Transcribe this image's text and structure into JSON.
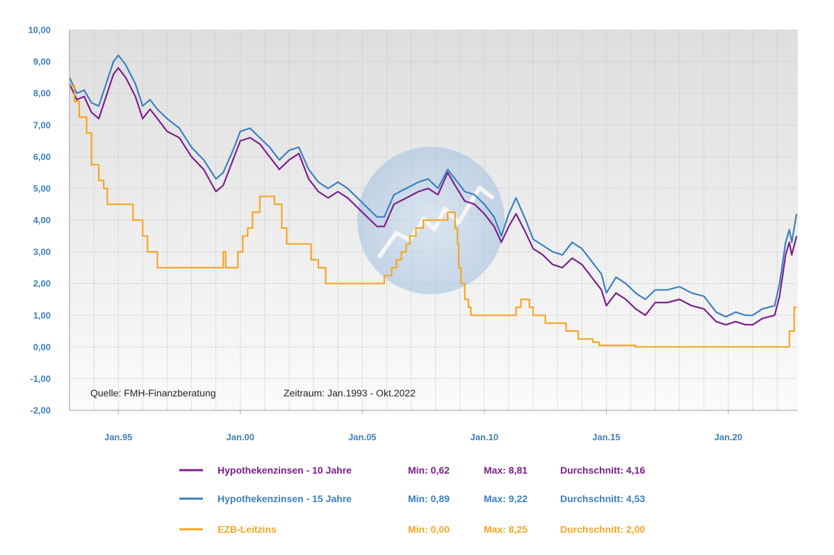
{
  "chart_data": {
    "type": "line",
    "title": "",
    "xlabel": "",
    "ylabel": "",
    "x_range": [
      "Jan.1993",
      "Okt.2022"
    ],
    "ylim": [
      -2,
      10
    ],
    "y_ticks": [
      "10,00",
      "9,00",
      "8,00",
      "7,00",
      "6,00",
      "5,00",
      "4,00",
      "3,00",
      "2,00",
      "1,00",
      "0,00",
      "-1,00",
      "-2,00"
    ],
    "x_ticks": [
      "Jan.95",
      "Jan.00",
      "Jan.05",
      "Jan.10",
      "Jan.15",
      "Jan.20"
    ],
    "grid": true,
    "legend_position": "bottom",
    "source_note": "Quelle: FMH-Finanzberatung",
    "period_note": "Zeitraum: Jan.1993 - Okt.2022",
    "series": [
      {
        "name": "Hypothekenzinsen - 10 Jahre",
        "color": "#7b1e8c",
        "min_label": "Min: 0,62",
        "max_label": "Max: 8,81",
        "avg_label": "Durchschnitt: 4,16",
        "points": [
          [
            1993.0,
            8.3
          ],
          [
            1993.3,
            7.8
          ],
          [
            1993.6,
            7.9
          ],
          [
            1993.9,
            7.4
          ],
          [
            1994.2,
            7.2
          ],
          [
            1994.5,
            7.9
          ],
          [
            1994.8,
            8.6
          ],
          [
            1995.0,
            8.8
          ],
          [
            1995.3,
            8.5
          ],
          [
            1995.7,
            7.9
          ],
          [
            1996.0,
            7.2
          ],
          [
            1996.3,
            7.5
          ],
          [
            1996.6,
            7.2
          ],
          [
            1997.0,
            6.8
          ],
          [
            1997.5,
            6.6
          ],
          [
            1998.0,
            6.0
          ],
          [
            1998.5,
            5.6
          ],
          [
            1999.0,
            4.9
          ],
          [
            1999.3,
            5.1
          ],
          [
            1999.7,
            5.9
          ],
          [
            2000.0,
            6.5
          ],
          [
            2000.4,
            6.6
          ],
          [
            2000.8,
            6.4
          ],
          [
            2001.2,
            6.0
          ],
          [
            2001.6,
            5.6
          ],
          [
            2002.0,
            5.9
          ],
          [
            2002.4,
            6.1
          ],
          [
            2002.8,
            5.3
          ],
          [
            2003.2,
            4.9
          ],
          [
            2003.6,
            4.7
          ],
          [
            2004.0,
            4.9
          ],
          [
            2004.4,
            4.7
          ],
          [
            2004.8,
            4.4
          ],
          [
            2005.2,
            4.1
          ],
          [
            2005.6,
            3.8
          ],
          [
            2005.9,
            3.8
          ],
          [
            2006.3,
            4.5
          ],
          [
            2006.8,
            4.7
          ],
          [
            2007.3,
            4.9
          ],
          [
            2007.7,
            5.0
          ],
          [
            2008.1,
            4.8
          ],
          [
            2008.5,
            5.5
          ],
          [
            2008.8,
            5.1
          ],
          [
            2009.2,
            4.6
          ],
          [
            2009.6,
            4.5
          ],
          [
            2010.0,
            4.2
          ],
          [
            2010.4,
            3.8
          ],
          [
            2010.7,
            3.3
          ],
          [
            2011.0,
            3.8
          ],
          [
            2011.3,
            4.2
          ],
          [
            2011.7,
            3.6
          ],
          [
            2012.0,
            3.1
          ],
          [
            2012.4,
            2.9
          ],
          [
            2012.8,
            2.6
          ],
          [
            2013.2,
            2.5
          ],
          [
            2013.6,
            2.8
          ],
          [
            2014.0,
            2.6
          ],
          [
            2014.4,
            2.2
          ],
          [
            2014.8,
            1.8
          ],
          [
            2015.0,
            1.3
          ],
          [
            2015.4,
            1.7
          ],
          [
            2015.8,
            1.5
          ],
          [
            2016.2,
            1.2
          ],
          [
            2016.6,
            1.0
          ],
          [
            2017.0,
            1.4
          ],
          [
            2017.5,
            1.4
          ],
          [
            2018.0,
            1.5
          ],
          [
            2018.5,
            1.3
          ],
          [
            2019.0,
            1.2
          ],
          [
            2019.5,
            0.8
          ],
          [
            2019.9,
            0.7
          ],
          [
            2020.3,
            0.8
          ],
          [
            2020.7,
            0.7
          ],
          [
            2021.0,
            0.7
          ],
          [
            2021.4,
            0.9
          ],
          [
            2021.9,
            1.0
          ],
          [
            2022.1,
            1.6
          ],
          [
            2022.35,
            2.9
          ],
          [
            2022.5,
            3.3
          ],
          [
            2022.6,
            2.9
          ],
          [
            2022.8,
            3.5
          ]
        ]
      },
      {
        "name": "Hypothekenzinsen - 15 Jahre",
        "color": "#3a7fc0",
        "min_label": "Min: 0,89",
        "max_label": "Max: 9,22",
        "avg_label": "Durchschnitt: 4,53",
        "points": [
          [
            1993.0,
            8.5
          ],
          [
            1993.3,
            8.0
          ],
          [
            1993.6,
            8.1
          ],
          [
            1993.9,
            7.7
          ],
          [
            1994.2,
            7.6
          ],
          [
            1994.5,
            8.3
          ],
          [
            1994.8,
            9.0
          ],
          [
            1995.0,
            9.2
          ],
          [
            1995.3,
            8.9
          ],
          [
            1995.7,
            8.3
          ],
          [
            1996.0,
            7.6
          ],
          [
            1996.3,
            7.8
          ],
          [
            1996.6,
            7.5
          ],
          [
            1997.0,
            7.2
          ],
          [
            1997.5,
            6.9
          ],
          [
            1998.0,
            6.3
          ],
          [
            1998.5,
            5.9
          ],
          [
            1999.0,
            5.3
          ],
          [
            1999.3,
            5.5
          ],
          [
            1999.7,
            6.2
          ],
          [
            2000.0,
            6.8
          ],
          [
            2000.4,
            6.9
          ],
          [
            2000.8,
            6.6
          ],
          [
            2001.2,
            6.3
          ],
          [
            2001.6,
            5.9
          ],
          [
            2002.0,
            6.2
          ],
          [
            2002.4,
            6.3
          ],
          [
            2002.8,
            5.6
          ],
          [
            2003.2,
            5.2
          ],
          [
            2003.6,
            5.0
          ],
          [
            2004.0,
            5.2
          ],
          [
            2004.4,
            5.0
          ],
          [
            2004.8,
            4.7
          ],
          [
            2005.2,
            4.4
          ],
          [
            2005.6,
            4.1
          ],
          [
            2005.9,
            4.1
          ],
          [
            2006.3,
            4.8
          ],
          [
            2006.8,
            5.0
          ],
          [
            2007.3,
            5.2
          ],
          [
            2007.7,
            5.3
          ],
          [
            2008.1,
            5.0
          ],
          [
            2008.5,
            5.6
          ],
          [
            2008.8,
            5.3
          ],
          [
            2009.2,
            4.9
          ],
          [
            2009.6,
            4.8
          ],
          [
            2010.0,
            4.5
          ],
          [
            2010.4,
            4.1
          ],
          [
            2010.7,
            3.5
          ],
          [
            2011.0,
            4.2
          ],
          [
            2011.3,
            4.7
          ],
          [
            2011.7,
            4.0
          ],
          [
            2012.0,
            3.4
          ],
          [
            2012.4,
            3.2
          ],
          [
            2012.8,
            3.0
          ],
          [
            2013.2,
            2.9
          ],
          [
            2013.6,
            3.3
          ],
          [
            2014.0,
            3.1
          ],
          [
            2014.4,
            2.7
          ],
          [
            2014.8,
            2.3
          ],
          [
            2015.0,
            1.7
          ],
          [
            2015.4,
            2.2
          ],
          [
            2015.8,
            2.0
          ],
          [
            2016.2,
            1.7
          ],
          [
            2016.6,
            1.5
          ],
          [
            2017.0,
            1.8
          ],
          [
            2017.5,
            1.8
          ],
          [
            2018.0,
            1.9
          ],
          [
            2018.5,
            1.7
          ],
          [
            2019.0,
            1.6
          ],
          [
            2019.5,
            1.1
          ],
          [
            2019.9,
            0.95
          ],
          [
            2020.3,
            1.1
          ],
          [
            2020.7,
            1.0
          ],
          [
            2021.0,
            1.0
          ],
          [
            2021.4,
            1.2
          ],
          [
            2021.9,
            1.3
          ],
          [
            2022.1,
            2.0
          ],
          [
            2022.35,
            3.3
          ],
          [
            2022.5,
            3.7
          ],
          [
            2022.6,
            3.3
          ],
          [
            2022.8,
            4.2
          ]
        ]
      },
      {
        "name": "EZB-Leitzins",
        "color": "#f5a623",
        "min_label": "Min: 0,00",
        "max_label": "Max: 8,25",
        "avg_label": "Durchschnitt: 2,00",
        "step": true,
        "points": [
          [
            1993.0,
            8.25
          ],
          [
            1993.2,
            7.75
          ],
          [
            1993.4,
            7.25
          ],
          [
            1993.7,
            6.75
          ],
          [
            1993.9,
            5.75
          ],
          [
            1994.2,
            5.25
          ],
          [
            1994.4,
            5.0
          ],
          [
            1994.55,
            4.5
          ],
          [
            1995.3,
            4.5
          ],
          [
            1995.6,
            4.0
          ],
          [
            1996.0,
            3.5
          ],
          [
            1996.2,
            3.0
          ],
          [
            1996.6,
            2.5
          ],
          [
            1998.8,
            2.5
          ],
          [
            1999.3,
            3.0
          ],
          [
            1999.4,
            2.5
          ],
          [
            1999.9,
            3.0
          ],
          [
            2000.1,
            3.5
          ],
          [
            2000.3,
            3.75
          ],
          [
            2000.5,
            4.25
          ],
          [
            2000.8,
            4.75
          ],
          [
            2001.4,
            4.5
          ],
          [
            2001.7,
            3.75
          ],
          [
            2001.9,
            3.25
          ],
          [
            2002.9,
            2.75
          ],
          [
            2003.2,
            2.5
          ],
          [
            2003.5,
            2.0
          ],
          [
            2005.9,
            2.25
          ],
          [
            2006.2,
            2.5
          ],
          [
            2006.4,
            2.75
          ],
          [
            2006.6,
            3.0
          ],
          [
            2006.8,
            3.25
          ],
          [
            2006.95,
            3.5
          ],
          [
            2007.2,
            3.75
          ],
          [
            2007.5,
            4.0
          ],
          [
            2008.5,
            4.25
          ],
          [
            2008.8,
            3.75
          ],
          [
            2008.9,
            3.25
          ],
          [
            2008.95,
            2.5
          ],
          [
            2009.05,
            2.0
          ],
          [
            2009.2,
            1.5
          ],
          [
            2009.35,
            1.25
          ],
          [
            2009.45,
            1.0
          ],
          [
            2011.3,
            1.25
          ],
          [
            2011.5,
            1.5
          ],
          [
            2011.85,
            1.25
          ],
          [
            2012.0,
            1.0
          ],
          [
            2012.5,
            0.75
          ],
          [
            2013.35,
            0.5
          ],
          [
            2013.85,
            0.25
          ],
          [
            2014.45,
            0.15
          ],
          [
            2014.7,
            0.05
          ],
          [
            2016.2,
            0.0
          ],
          [
            2022.5,
            0.5
          ],
          [
            2022.7,
            1.25
          ],
          [
            2022.8,
            1.25
          ]
        ]
      }
    ]
  }
}
